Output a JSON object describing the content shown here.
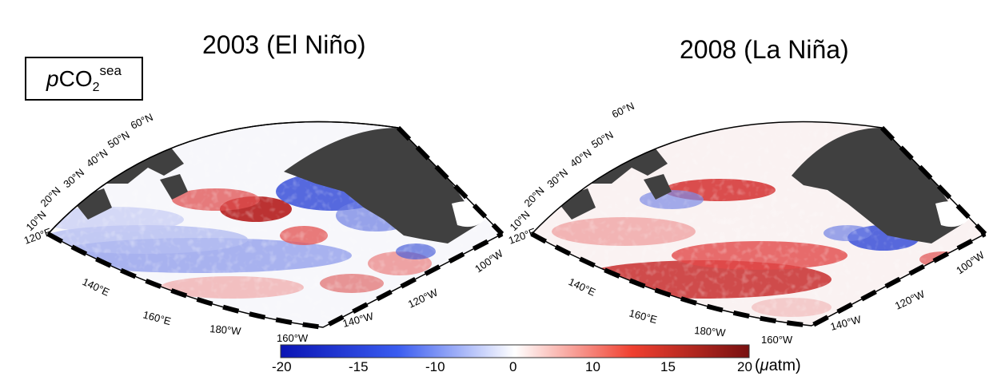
{
  "panels": [
    {
      "title": "2003 (El Niño)"
    },
    {
      "title": "2008 (La Niña)"
    }
  ],
  "variable_label": {
    "prefix": "p",
    "base": "CO",
    "subscript": "2",
    "superscript": "sea"
  },
  "lat_labels": [
    "10°N",
    "20°N",
    "30°N",
    "40°N",
    "50°N",
    "60°N"
  ],
  "lon_labels": [
    "120°E",
    "140°E",
    "160°E",
    "180°W",
    "160°W",
    "140°W",
    "120°W",
    "100°W"
  ],
  "colorbar": {
    "ticks": [
      "-20",
      "-15",
      "-10",
      "0",
      "10",
      "15",
      "20"
    ],
    "unit_symbol": "μ",
    "unit_rest": "atm",
    "colors": [
      "#0a14b4",
      "#ffffff",
      "#781010"
    ]
  }
}
